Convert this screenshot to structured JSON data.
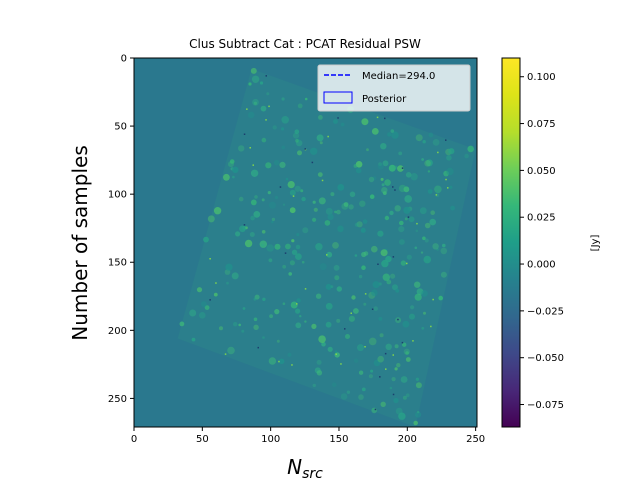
{
  "chart_data": {
    "type": "heatmap",
    "title": "Clus Subtract Cat : PCAT Residual PSW",
    "xlabel_main": "N",
    "xlabel_sub": "src",
    "ylabel": "Number of samples",
    "xlim": [
      0,
      251
    ],
    "ylim": [
      0,
      271
    ],
    "y_inverted": true,
    "x_ticks": [
      0,
      50,
      100,
      150,
      200,
      250
    ],
    "y_ticks": [
      0,
      50,
      100,
      150,
      200,
      250
    ],
    "colorbar": {
      "label": "[Jy]",
      "range": [
        -0.087,
        0.11
      ],
      "ticks": [
        0.1,
        0.075,
        0.05,
        0.025,
        0.0,
        -0.025,
        -0.05,
        -0.075
      ],
      "tick_labels": [
        "0.100",
        "0.075",
        "0.050",
        "0.025",
        "0.000",
        "−0.025",
        "−0.050",
        "−0.075"
      ],
      "colormap": "viridis"
    },
    "background_value": 0.0,
    "background_color": "#2a788e",
    "region_color": "#2b7f8c",
    "legend": {
      "placement": "top-right",
      "entries": [
        {
          "label": "Median=294.0",
          "style": "dashed-line",
          "color": "#0000ff"
        },
        {
          "label": "Posterior",
          "style": "box",
          "color": "#0000ff"
        }
      ]
    },
    "footprint_corners": [
      [
        86,
        8
      ],
      [
        250,
        67
      ],
      [
        206,
        271
      ],
      [
        32,
        206
      ]
    ]
  }
}
